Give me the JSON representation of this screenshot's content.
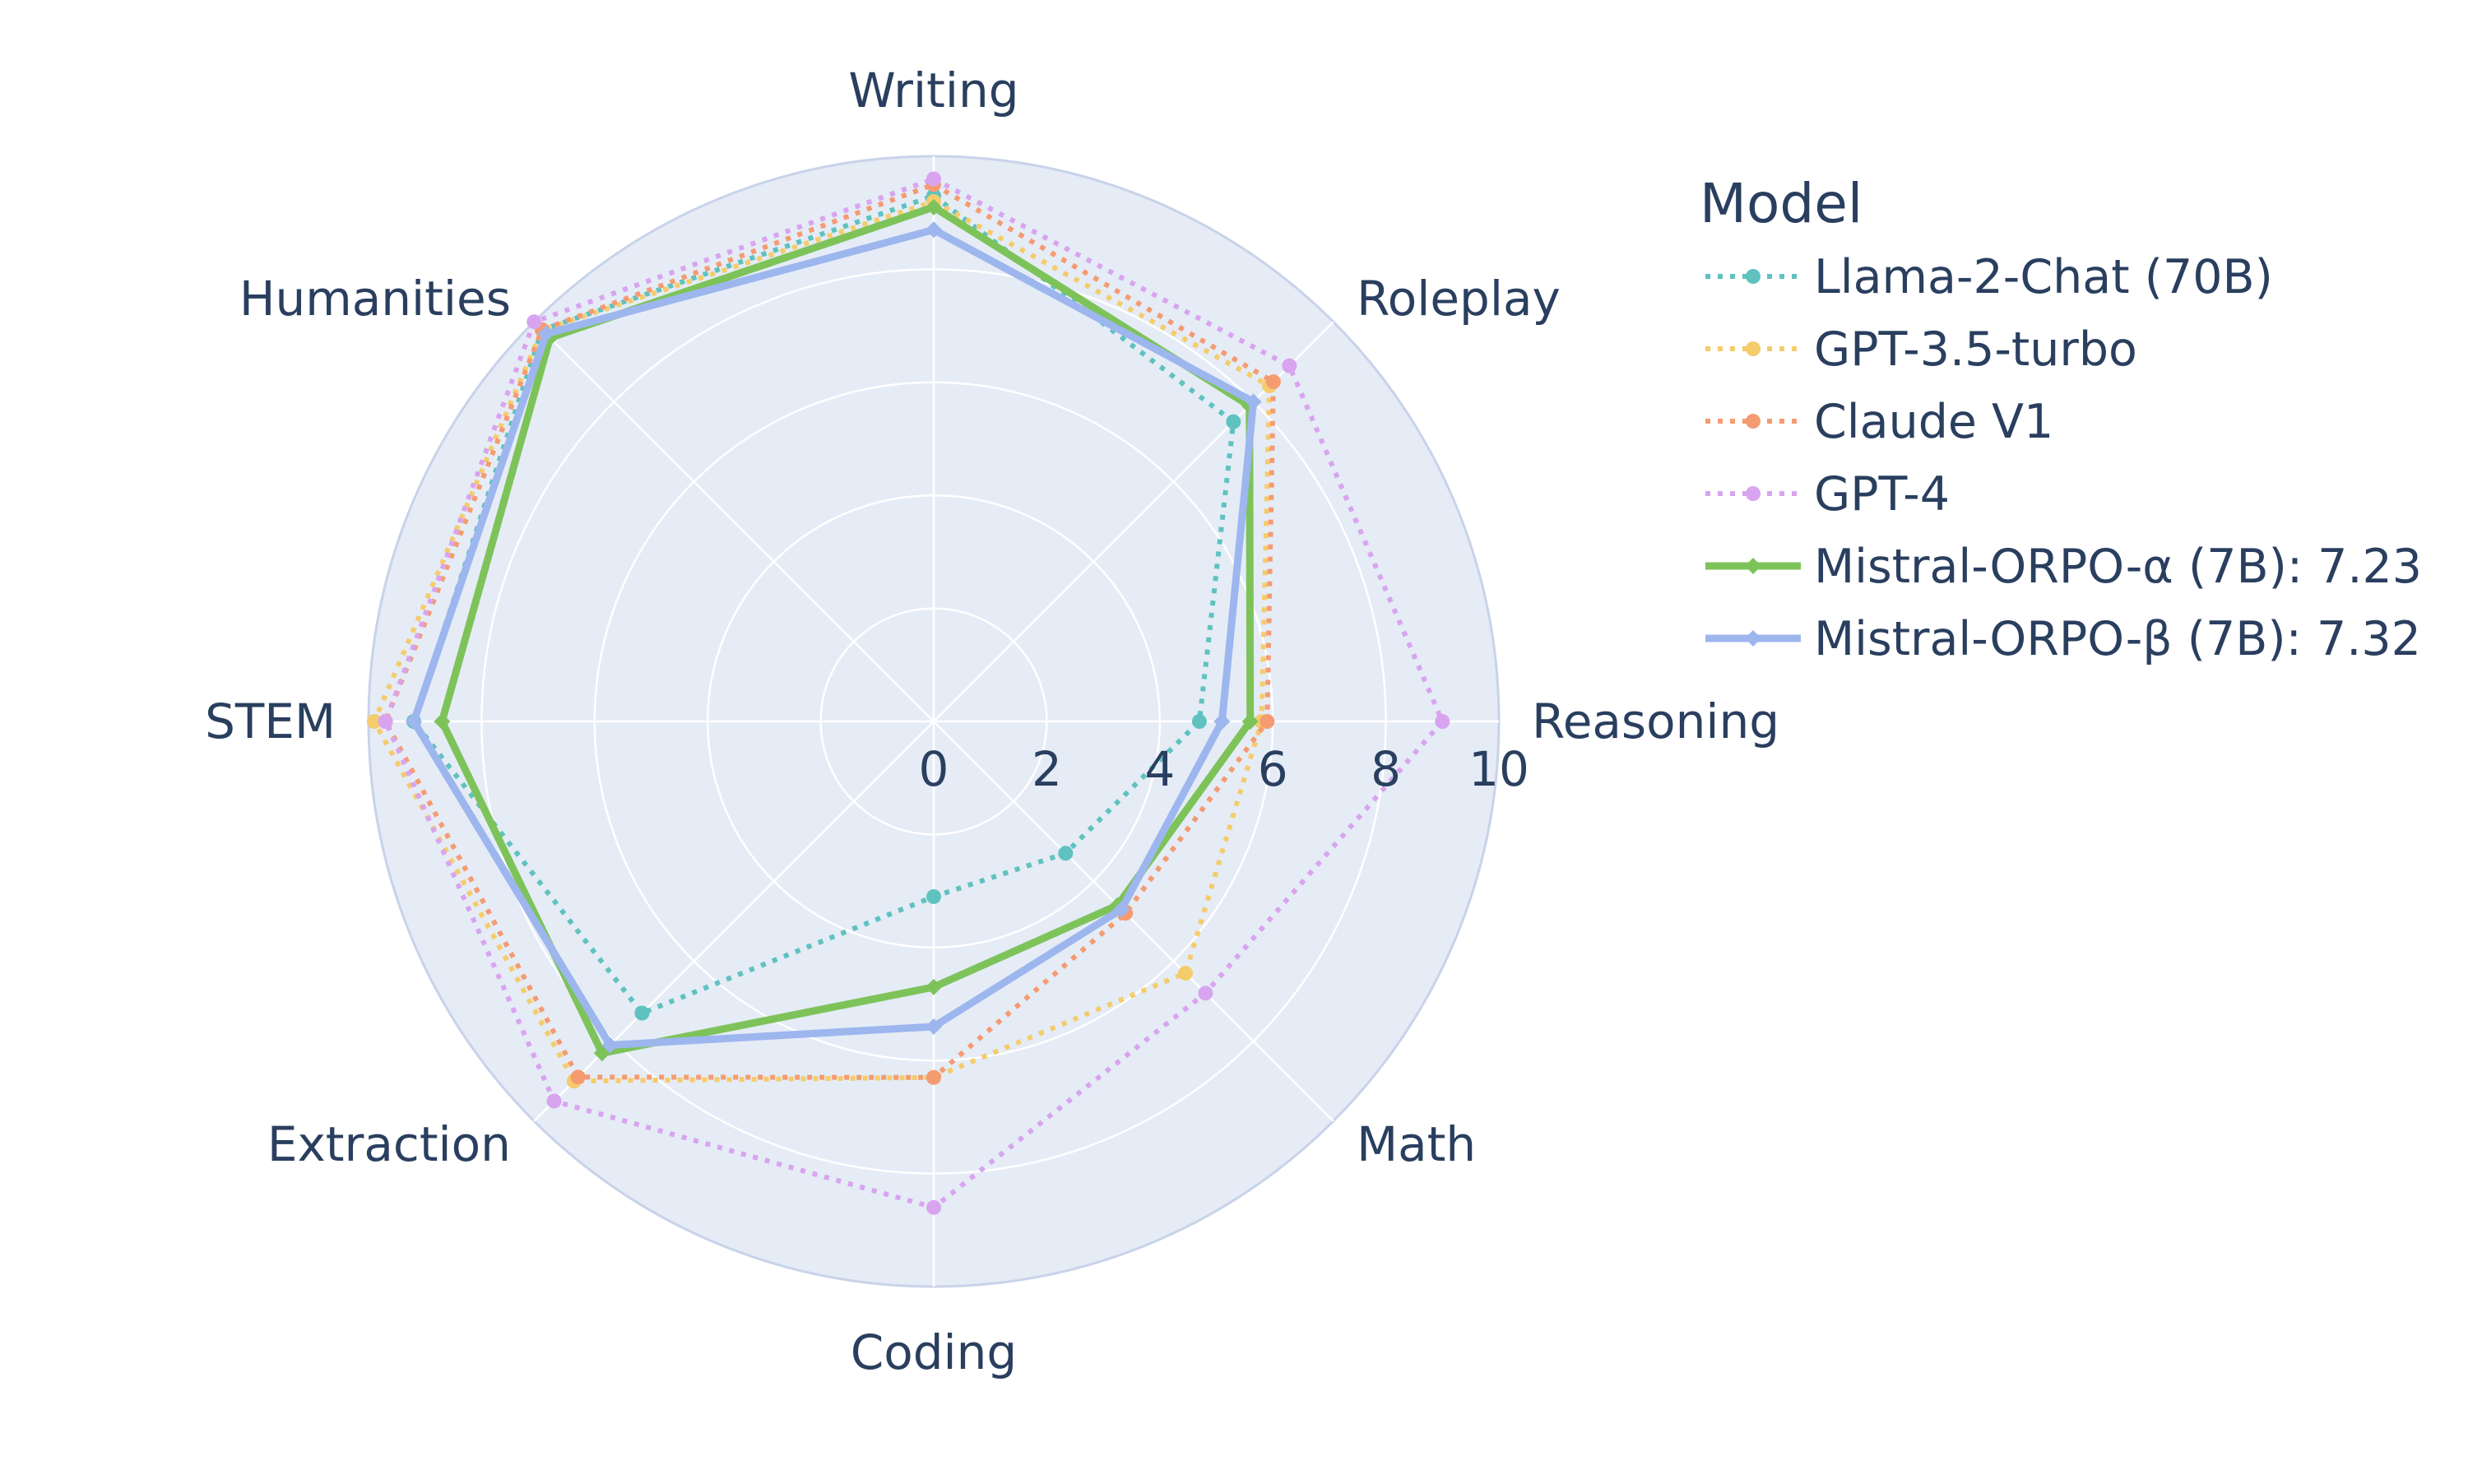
{
  "chart_data": {
    "type": "radar",
    "categories": [
      "Writing",
      "Roleplay",
      "Reasoning",
      "Math",
      "Coding",
      "Extraction",
      "STEM",
      "Humanities"
    ],
    "radial_range": [
      0,
      10
    ],
    "radial_ticks": [
      "0",
      "2",
      "4",
      "6",
      "8",
      "10"
    ],
    "grid": true,
    "legend": {
      "title": "Model",
      "placement": "right"
    },
    "series": [
      {
        "name": "Llama-2-Chat (70B)",
        "color": "#5fc2bf",
        "style": "dotted",
        "marker": "circle",
        "values": [
          9.3,
          7.5,
          4.7,
          3.3,
          3.1,
          7.3,
          9.2,
          9.8
        ]
      },
      {
        "name": "GPT-3.5-turbo",
        "color": "#f5cc6b",
        "style": "dotted",
        "marker": "circle",
        "values": [
          9.2,
          8.4,
          5.8,
          6.3,
          6.3,
          9.0,
          9.9,
          9.8
        ]
      },
      {
        "name": "Claude V1",
        "color": "#f59b72",
        "style": "dotted",
        "marker": "circle",
        "values": [
          9.5,
          8.5,
          5.9,
          4.8,
          6.3,
          8.9,
          9.7,
          9.8
        ]
      },
      {
        "name": "GPT-4",
        "color": "#d9a4ef",
        "style": "dotted",
        "marker": "circle",
        "values": [
          9.6,
          8.9,
          9.0,
          6.8,
          8.6,
          9.5,
          9.7,
          10.0
        ]
      },
      {
        "name": "Mistral-ORPO-α (7B): 7.23",
        "color": "#7dc35a",
        "style": "solid",
        "marker": "diamond",
        "values": [
          9.1,
          7.9,
          5.6,
          4.6,
          4.7,
          8.3,
          8.7,
          9.6
        ]
      },
      {
        "name": "Mistral-ORPO-β (7B): 7.32",
        "color": "#9db6ee",
        "style": "solid",
        "marker": "diamond",
        "values": [
          8.7,
          8.0,
          5.1,
          4.7,
          5.4,
          8.1,
          9.2,
          9.7
        ]
      }
    ]
  }
}
